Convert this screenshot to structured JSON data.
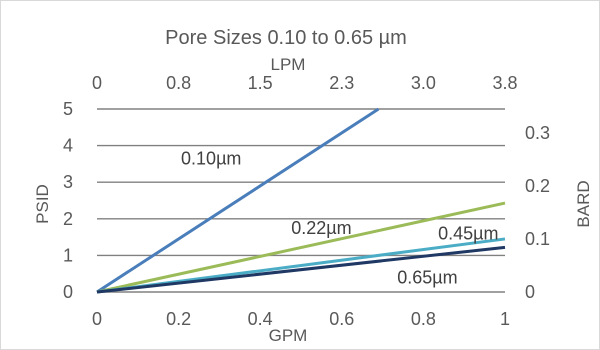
{
  "chart_data": {
    "type": "line",
    "title": "Pore Sizes 0.10 to 0.65 µm",
    "xlabel": "GPM",
    "ylabel": "PSID",
    "x2label": "LPM",
    "y2label": "BARD",
    "xlim": [
      0,
      1
    ],
    "ylim": [
      0,
      5
    ],
    "x2lim": [
      0,
      3.8
    ],
    "y2lim": [
      0,
      0.345
    ],
    "x_ticks": [
      "0",
      "0.2",
      "0.4",
      "0.6",
      "0.8",
      "1"
    ],
    "y_ticks": [
      "0",
      "1",
      "2",
      "3",
      "4",
      "5"
    ],
    "x2_ticks": [
      "0",
      "0.8",
      "1.5",
      "2.3",
      "3.0",
      "3.8"
    ],
    "y2_ticks": [
      "0",
      "0.1",
      "0.2",
      "0.3"
    ],
    "y2_tick_values": [
      0,
      0.1,
      0.2,
      0.3
    ],
    "grid": true,
    "legend": "none",
    "series": [
      {
        "name": "0.10µm",
        "color": "#4a7ebb",
        "x": [
          0,
          0.69
        ],
        "y": [
          0,
          5.0
        ]
      },
      {
        "name": "0.22µm",
        "color": "#9bbb59",
        "x": [
          0,
          1
        ],
        "y": [
          0,
          2.43
        ]
      },
      {
        "name": "0.45µm",
        "color": "#4bacc6",
        "x": [
          0,
          1
        ],
        "y": [
          0,
          1.45
        ]
      },
      {
        "name": "0.65µm",
        "color": "#1f3864",
        "x": [
          0,
          1
        ],
        "y": [
          0,
          1.22
        ]
      }
    ],
    "annotations": [
      {
        "text": "0.10µm",
        "x": 0.28,
        "y": 3.65
      },
      {
        "text": "0.22µm",
        "x": 0.55,
        "y": 1.75
      },
      {
        "text": "0.45µm",
        "x": 0.91,
        "y": 1.6
      },
      {
        "text": "0.65µm",
        "x": 0.81,
        "y": 0.4
      }
    ]
  }
}
